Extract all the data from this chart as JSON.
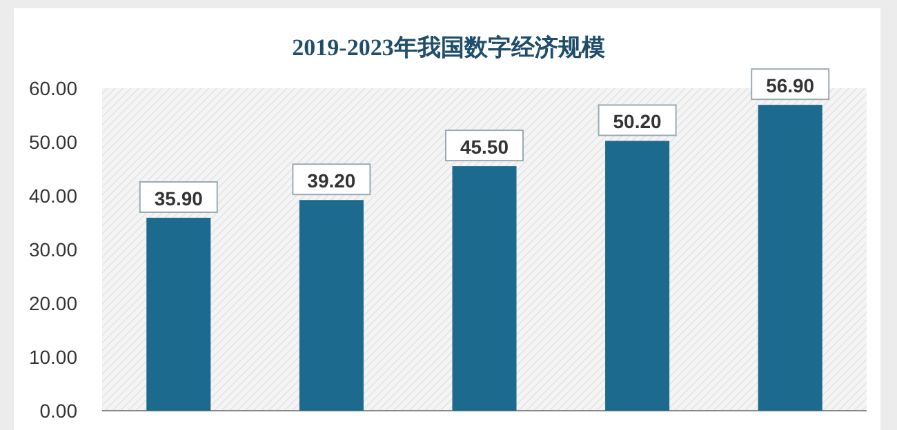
{
  "chart_data": {
    "type": "bar",
    "title": "2019-2023年我国数字经济规模",
    "categories": [
      null,
      null,
      null,
      null,
      null
    ],
    "values": [
      35.9,
      39.2,
      45.5,
      50.2,
      56.9
    ],
    "value_labels": [
      "35.90",
      "39.20",
      "45.50",
      "50.20",
      "56.90"
    ],
    "color": "#1c6a8e",
    "ylim": [
      0,
      60
    ],
    "yticks": [
      {
        "value": 0,
        "label": "0.00"
      },
      {
        "value": 10,
        "label": "10.00"
      },
      {
        "value": 20,
        "label": "20.00"
      },
      {
        "value": 30,
        "label": "30.00"
      },
      {
        "value": 40,
        "label": "40.00"
      },
      {
        "value": 50,
        "label": "50.00"
      },
      {
        "value": 60,
        "label": "60.00"
      }
    ],
    "grid": false
  }
}
